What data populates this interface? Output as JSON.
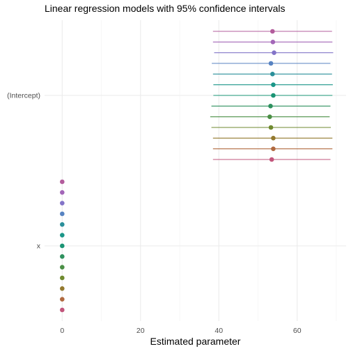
{
  "chart_data": {
    "type": "scatter",
    "title": "Linear regression models with 95% confidence intervals",
    "xlabel": "Estimated parameter",
    "ylabel": "",
    "xlim": [
      -4.5,
      72.5
    ],
    "x_ticks": [
      0,
      20,
      40,
      60
    ],
    "x_tick_labels": [
      "0",
      "20",
      "40",
      "60"
    ],
    "categories": [
      "(Intercept)",
      "x"
    ],
    "grid": true,
    "legend": "none",
    "series": [
      {
        "color": "#c2567c",
        "points": [
          {
            "term": "(Intercept)",
            "estimate": 53.5,
            "low": 38.5,
            "high": 68.5
          },
          {
            "term": "x",
            "estimate": 0.0,
            "low": 0.0,
            "high": 0.0
          }
        ]
      },
      {
        "color": "#b0693f",
        "points": [
          {
            "term": "(Intercept)",
            "estimate": 53.9,
            "low": 38.5,
            "high": 69.0
          },
          {
            "term": "x",
            "estimate": 0.0,
            "low": 0.0,
            "high": 0.0
          }
        ]
      },
      {
        "color": "#93792e",
        "points": [
          {
            "term": "(Intercept)",
            "estimate": 53.9,
            "low": 38.5,
            "high": 69.0
          },
          {
            "term": "x",
            "estimate": 0.0,
            "low": 0.0,
            "high": 0.0
          }
        ]
      },
      {
        "color": "#6f8a2f",
        "points": [
          {
            "term": "(Intercept)",
            "estimate": 53.3,
            "low": 38.1,
            "high": 68.6
          },
          {
            "term": "x",
            "estimate": 0.0,
            "low": 0.0,
            "high": 0.0
          }
        ]
      },
      {
        "color": "#4a8f45",
        "points": [
          {
            "term": "(Intercept)",
            "estimate": 53.0,
            "low": 37.8,
            "high": 68.3
          },
          {
            "term": "x",
            "estimate": 0.0,
            "low": 0.0,
            "high": 0.0
          }
        ]
      },
      {
        "color": "#2e915e",
        "points": [
          {
            "term": "(Intercept)",
            "estimate": 53.2,
            "low": 38.1,
            "high": 68.5
          },
          {
            "term": "x",
            "estimate": 0.0,
            "low": 0.0,
            "high": 0.0
          }
        ]
      },
      {
        "color": "#1a9474",
        "points": [
          {
            "term": "(Intercept)",
            "estimate": 53.9,
            "low": 38.6,
            "high": 69.0
          },
          {
            "term": "x",
            "estimate": 0.0,
            "low": 0.0,
            "high": 0.0
          }
        ]
      },
      {
        "color": "#1a9688",
        "points": [
          {
            "term": "(Intercept)",
            "estimate": 53.9,
            "low": 38.6,
            "high": 69.1
          },
          {
            "term": "x",
            "estimate": 0.0,
            "low": 0.0,
            "high": 0.0
          }
        ]
      },
      {
        "color": "#2a8f9a",
        "points": [
          {
            "term": "(Intercept)",
            "estimate": 53.7,
            "low": 38.5,
            "high": 68.9
          },
          {
            "term": "x",
            "estimate": 0.0,
            "low": 0.0,
            "high": 0.0
          }
        ]
      },
      {
        "color": "#5783c2",
        "points": [
          {
            "term": "(Intercept)",
            "estimate": 53.3,
            "low": 38.2,
            "high": 68.5
          },
          {
            "term": "x",
            "estimate": 0.0,
            "low": 0.0,
            "high": 0.0
          }
        ]
      },
      {
        "color": "#8374c8",
        "points": [
          {
            "term": "(Intercept)",
            "estimate": 54.1,
            "low": 38.8,
            "high": 69.2
          },
          {
            "term": "x",
            "estimate": 0.0,
            "low": 0.0,
            "high": 0.0
          }
        ]
      },
      {
        "color": "#a366b8",
        "points": [
          {
            "term": "(Intercept)",
            "estimate": 53.8,
            "low": 38.5,
            "high": 69.0
          },
          {
            "term": "x",
            "estimate": 0.0,
            "low": 0.0,
            "high": 0.0
          }
        ]
      },
      {
        "color": "#b35c9c",
        "points": [
          {
            "term": "(Intercept)",
            "estimate": 53.7,
            "low": 38.5,
            "high": 68.9
          },
          {
            "term": "x",
            "estimate": 0.0,
            "low": 0.0,
            "high": 0.0
          }
        ]
      }
    ]
  }
}
